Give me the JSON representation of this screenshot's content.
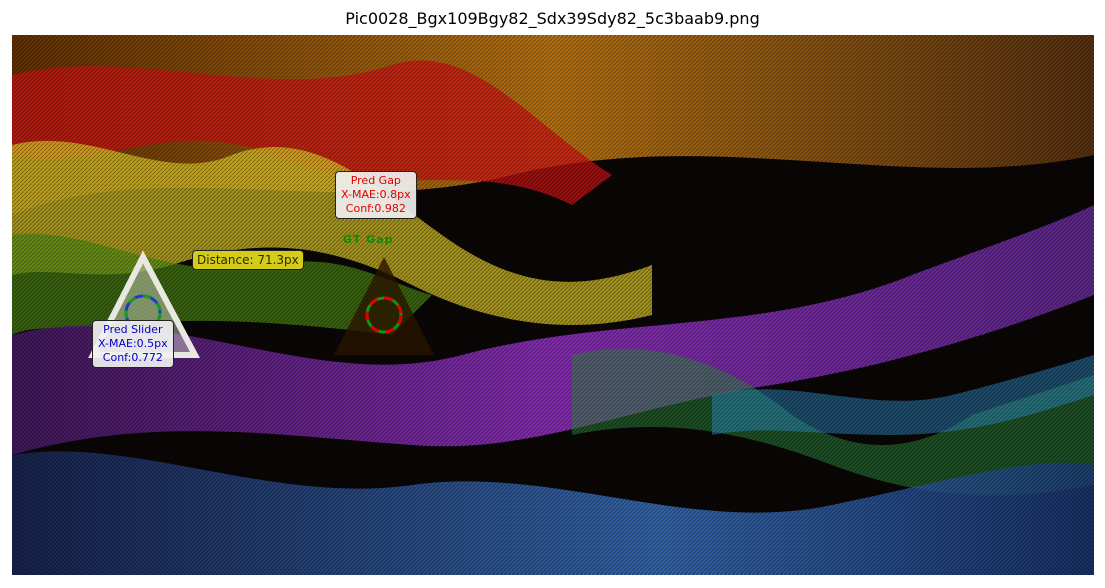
{
  "figure": {
    "title": "Pic0028_Bgx109Bgy82_Sdx39Sdy82_5c3baab9.png"
  },
  "scene": {
    "background": "abstract colorful string-art waves (red, orange, yellow, green, purple, blue) on black",
    "colors": {
      "pred_gap": "#e00000",
      "gt_gap": "#0a8a0a",
      "pred_slider": "#0000cc",
      "distance_box": "#d4cc1a"
    }
  },
  "annotations": {
    "pred_gap": {
      "title": "Pred Gap",
      "mae": "X-MAE:0.8px",
      "conf": "Conf:0.982"
    },
    "gt_gap": {
      "label": "GT Gap"
    },
    "pred_slider": {
      "title": "Pred Slider",
      "mae": "X-MAE:0.5px",
      "conf": "Conf:0.772"
    },
    "distance": {
      "label": "Distance: 71.3px"
    }
  }
}
